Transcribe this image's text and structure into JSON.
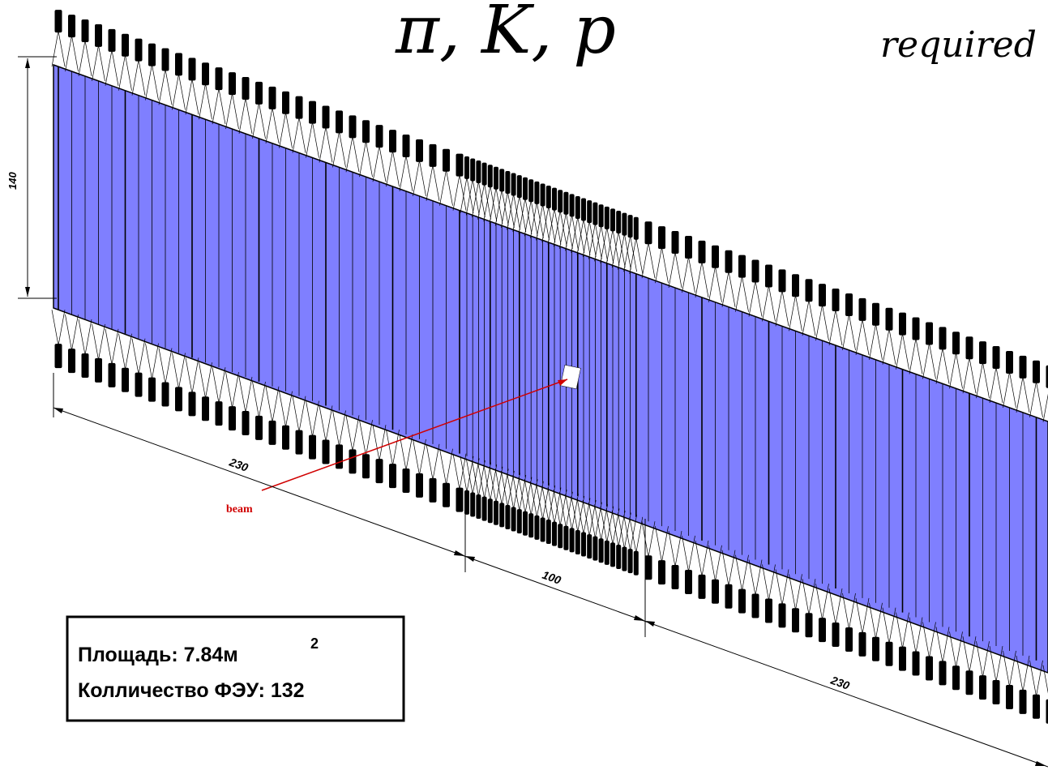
{
  "header": {
    "particles": "π, K, p",
    "required": "required"
  },
  "dimensions": {
    "height": "140",
    "left_length": "230",
    "center_length": "100",
    "right_length": "230"
  },
  "beam": {
    "label": "beam"
  },
  "info_box": {
    "area_label": "Площадь: 7.84м",
    "area_superscript": "2",
    "pmt_count_label": "Колличество ФЭУ: 132"
  },
  "colors": {
    "scintillator": "#7f7fff",
    "beam": "#d00000",
    "outline": "#000000"
  },
  "legend_icons": [
    "pmt-icon",
    "light-guide-icon"
  ]
}
